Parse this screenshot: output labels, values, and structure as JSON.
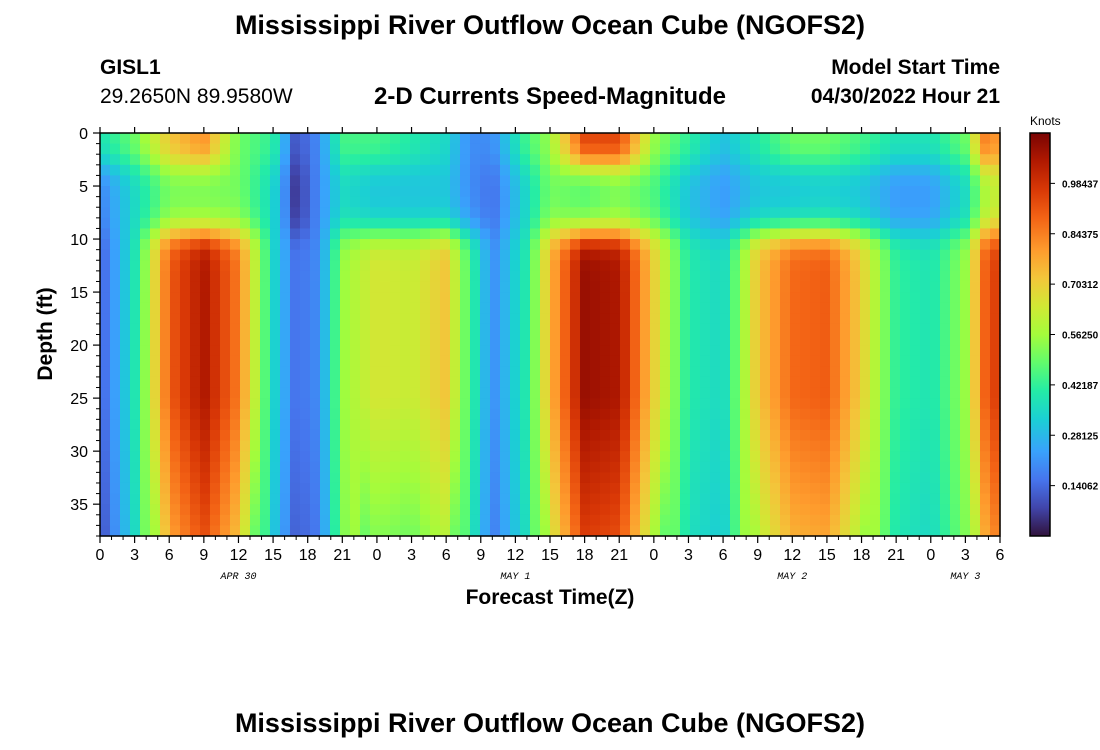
{
  "header": {
    "title": "Mississippi River Outflow Ocean Cube (NGOFS2)",
    "station_id": "GISL1",
    "coords": "29.2650N  89.9580W",
    "subtitle": "2-D Currents Speed-Magnitude",
    "model_label": "Model Start Time",
    "model_time": "04/30/2022 Hour 21"
  },
  "footer": {
    "title": "Mississippi River Outflow Ocean Cube (NGOFS2)"
  },
  "chart_data": {
    "type": "heatmap",
    "title": "2-D Currents Speed-Magnitude",
    "xlabel": "Forecast Time(Z)",
    "ylabel": "Depth (ft)",
    "x_range_hours": [
      0,
      78
    ],
    "y_range_ft": [
      0,
      38
    ],
    "y_inverted": true,
    "x_ticks": [
      "0",
      "3",
      "6",
      "9",
      "12",
      "15",
      "18",
      "21",
      "0",
      "3",
      "6",
      "9",
      "12",
      "15",
      "18",
      "21",
      "0",
      "3",
      "6",
      "9",
      "12",
      "15",
      "18",
      "21",
      "0",
      "3",
      "6"
    ],
    "day_labels": [
      {
        "label": "APR 30",
        "hour": 12
      },
      {
        "label": "MAY 1",
        "hour": 36
      },
      {
        "label": "MAY 2",
        "hour": 60
      },
      {
        "label": "MAY 3",
        "hour": 75
      }
    ],
    "y_ticks": [
      0,
      5,
      10,
      15,
      20,
      25,
      30,
      35
    ],
    "colorbar": {
      "unit": "Knots",
      "range": [
        0,
        1.125
      ],
      "tick_values": [
        0.98437,
        0.84375,
        0.70312,
        0.5625,
        0.42187,
        0.28125,
        0.14062
      ],
      "tick_labels": [
        "0.98437",
        "0.84375",
        "0.70312",
        "0.56250",
        "0.42187",
        "0.28125",
        "0.14062"
      ]
    },
    "time_profiles": [
      {
        "hour": 0,
        "surface": 0.38,
        "mid": 0.18,
        "deep": 0.12
      },
      {
        "hour": 3,
        "surface": 0.5,
        "mid": 0.35,
        "deep": 0.38
      },
      {
        "hour": 6,
        "surface": 0.72,
        "mid": 0.5,
        "deep": 0.9
      },
      {
        "hour": 9,
        "surface": 0.82,
        "mid": 0.5,
        "deep": 1.05
      },
      {
        "hour": 12,
        "surface": 0.5,
        "mid": 0.5,
        "deep": 0.85
      },
      {
        "hour": 15,
        "surface": 0.42,
        "mid": 0.35,
        "deep": 0.35
      },
      {
        "hour": 17,
        "surface": 0.1,
        "mid": 0.05,
        "deep": 0.15
      },
      {
        "hour": 19,
        "surface": 0.2,
        "mid": 0.2,
        "deep": 0.2
      },
      {
        "hour": 21,
        "surface": 0.45,
        "mid": 0.35,
        "deep": 0.55
      },
      {
        "hour": 24,
        "surface": 0.45,
        "mid": 0.3,
        "deep": 0.65
      },
      {
        "hour": 27,
        "surface": 0.4,
        "mid": 0.3,
        "deep": 0.62
      },
      {
        "hour": 30,
        "surface": 0.35,
        "mid": 0.3,
        "deep": 0.72
      },
      {
        "hour": 32,
        "surface": 0.2,
        "mid": 0.2,
        "deep": 0.45
      },
      {
        "hour": 34,
        "surface": 0.2,
        "mid": 0.15,
        "deep": 0.2
      },
      {
        "hour": 37,
        "surface": 0.45,
        "mid": 0.35,
        "deep": 0.4
      },
      {
        "hour": 39,
        "surface": 0.55,
        "mid": 0.5,
        "deep": 0.75
      },
      {
        "hour": 42,
        "surface": 0.95,
        "mid": 0.45,
        "deep": 1.08
      },
      {
        "hour": 45,
        "surface": 0.95,
        "mid": 0.5,
        "deep": 1.05
      },
      {
        "hour": 48,
        "surface": 0.55,
        "mid": 0.45,
        "deep": 0.7
      },
      {
        "hour": 51,
        "surface": 0.42,
        "mid": 0.3,
        "deep": 0.4
      },
      {
        "hour": 54,
        "surface": 0.3,
        "mid": 0.22,
        "deep": 0.35
      },
      {
        "hour": 57,
        "surface": 0.4,
        "mid": 0.3,
        "deep": 0.72
      },
      {
        "hour": 60,
        "surface": 0.5,
        "mid": 0.3,
        "deep": 0.88
      },
      {
        "hour": 63,
        "surface": 0.5,
        "mid": 0.32,
        "deep": 0.9
      },
      {
        "hour": 66,
        "surface": 0.45,
        "mid": 0.3,
        "deep": 0.7
      },
      {
        "hour": 69,
        "surface": 0.38,
        "mid": 0.22,
        "deep": 0.42
      },
      {
        "hour": 72,
        "surface": 0.38,
        "mid": 0.22,
        "deep": 0.38
      },
      {
        "hour": 75,
        "surface": 0.5,
        "mid": 0.35,
        "deep": 0.55
      },
      {
        "hour": 77,
        "surface": 0.9,
        "mid": 0.6,
        "deep": 0.95
      },
      {
        "hour": 78,
        "surface": 0.75,
        "mid": 0.6,
        "deep": 0.95
      }
    ]
  }
}
